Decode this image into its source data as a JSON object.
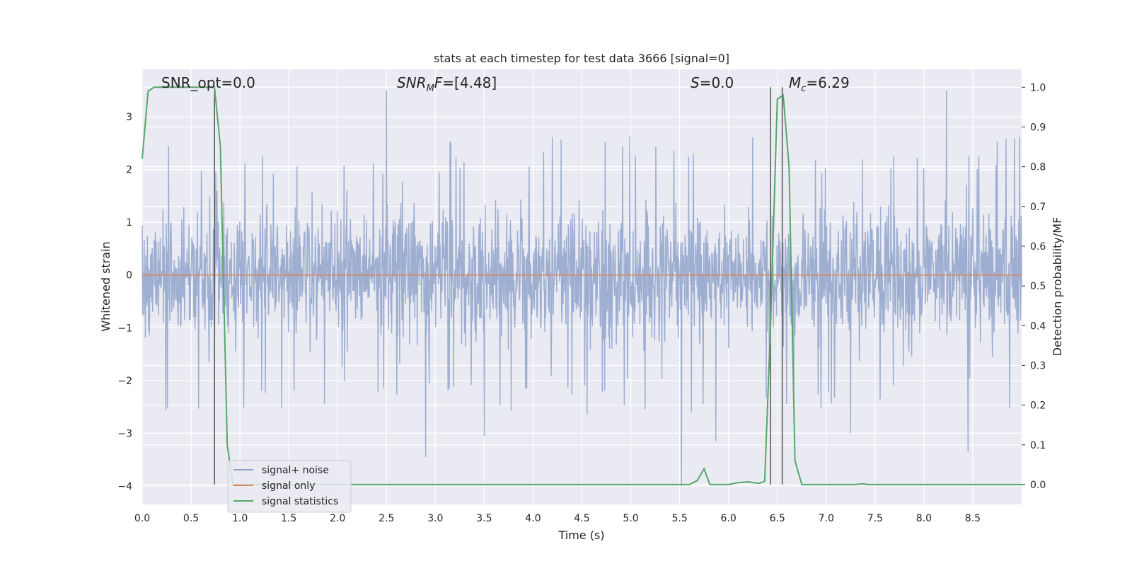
{
  "chart_data": {
    "type": "line",
    "title": "stats at each timestep for test data 3666 [signal=0]",
    "xlabel": "Time (s)",
    "ylabel": "Whitened strain",
    "ylabel_right": "Detection probability/MF",
    "xlim": [
      0.0,
      9.0
    ],
    "ylim": [
      -4.35,
      3.9
    ],
    "ylim_right": [
      -0.05,
      1.045
    ],
    "x_ticks": [
      0.0,
      0.5,
      1.0,
      1.5,
      2.0,
      2.5,
      3.0,
      3.5,
      4.0,
      4.5,
      5.0,
      5.5,
      6.0,
      6.5,
      7.0,
      7.5,
      8.0,
      8.5
    ],
    "x_tick_labels": [
      "0.0",
      "0.5",
      "1.0",
      "1.5",
      "2.0",
      "2.5",
      "3.0",
      "3.5",
      "4.0",
      "4.5",
      "5.0",
      "5.5",
      "6.0",
      "6.5",
      "7.0",
      "7.5",
      "8.0",
      "8.5"
    ],
    "y_ticks": [
      3,
      2,
      1,
      0,
      -1,
      -2,
      -3,
      -4
    ],
    "y_tick_labels": [
      "3",
      "2",
      "1",
      "0",
      "−1",
      "−2",
      "−3",
      "−4"
    ],
    "y_ticks_right": [
      1.0,
      0.9,
      0.8,
      0.7,
      0.6,
      0.5,
      0.4,
      0.3,
      0.2,
      0.1,
      0.0
    ],
    "y_tick_labels_right": [
      "1.0",
      "0.9",
      "0.8",
      "0.7",
      "0.6",
      "0.5",
      "0.4",
      "0.3",
      "0.2",
      "0.1",
      "0.0"
    ],
    "grid": true,
    "legend_position": "lower-left",
    "annotations": [
      {
        "text": "SNR_opt=0.0",
        "x": 0.2
      },
      {
        "text": "SNR_MF=[4.48]",
        "x": 2.6,
        "math": true
      },
      {
        "text": "S=0.0",
        "x": 5.6,
        "math": true
      },
      {
        "text": "M_c=6.29",
        "x": 6.65,
        "math": true
      }
    ],
    "vertical_lines": [
      0.74,
      6.43,
      6.55
    ],
    "series": [
      {
        "name": "signal+ noise",
        "color": "#8fa3cb",
        "axis": "left",
        "kind": "noise",
        "envelope_typical": 1.8,
        "peaks": [
          {
            "x": 2.5,
            "y": 3.5
          },
          {
            "x": 8.23,
            "y": 3.5
          },
          {
            "x": 2.9,
            "y": -3.45
          },
          {
            "x": 5.52,
            "y": -4.0
          },
          {
            "x": 8.45,
            "y": -3.35
          },
          {
            "x": 3.5,
            "y": -3.05
          },
          {
            "x": 5.87,
            "y": -3.15
          },
          {
            "x": 7.25,
            "y": -3.0
          }
        ]
      },
      {
        "name": "signal only",
        "color": "#dd8452",
        "axis": "left",
        "x": [
          0.0,
          9.0
        ],
        "y": [
          0.0,
          0.0
        ]
      },
      {
        "name": "signal statistics",
        "color": "#55a868",
        "axis": "right",
        "x": [
          0.0,
          0.06,
          0.12,
          0.5,
          0.74,
          0.8,
          0.87,
          0.93,
          5.3,
          5.6,
          5.68,
          5.75,
          5.81,
          6.0,
          6.1,
          6.2,
          6.31,
          6.37,
          6.43,
          6.5,
          6.56,
          6.62,
          6.68,
          6.75,
          7.3,
          7.37,
          7.43,
          9.0
        ],
        "y": [
          0.82,
          0.99,
          1.0,
          1.0,
          1.0,
          0.85,
          0.1,
          0.0,
          0.0,
          0.0,
          0.01,
          0.04,
          0.0,
          0.0,
          0.005,
          0.007,
          0.003,
          0.008,
          0.4,
          0.97,
          0.98,
          0.8,
          0.06,
          0.0,
          0.0,
          0.002,
          0.0,
          0.0
        ]
      }
    ]
  }
}
